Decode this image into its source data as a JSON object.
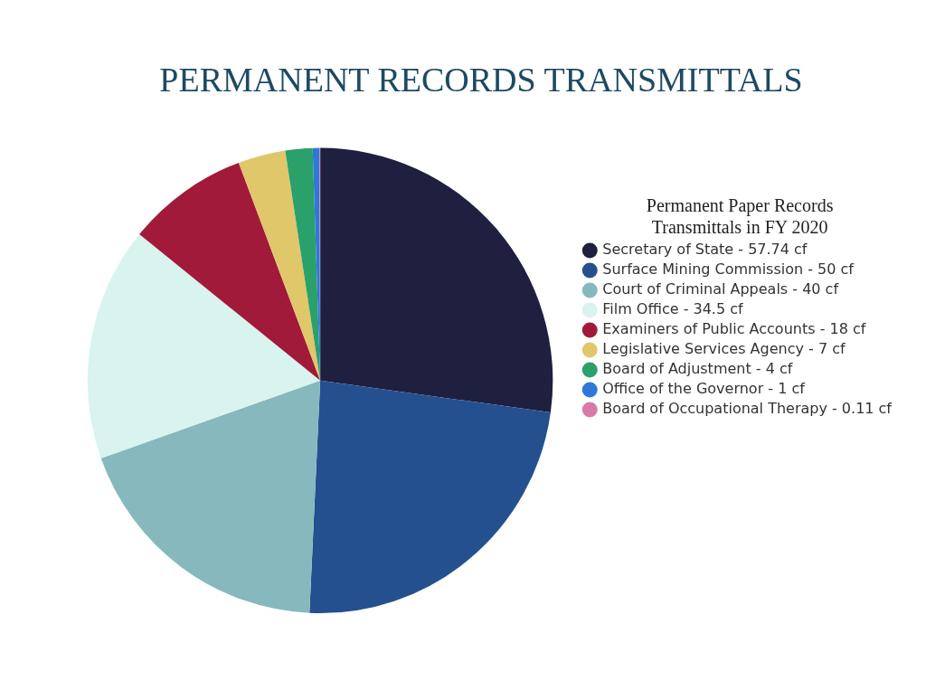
{
  "chart_data": {
    "type": "pie",
    "title": "PERMANENT RECORDS TRANSMITTALS",
    "legend_title": "Permanent Paper Records Transmittals in FY 2020",
    "legend": "right",
    "categories": [
      "Secretary of State",
      "Surface Mining Commission",
      "Court of Criminal Appeals",
      "Film Office",
      "Examiners of Public Accounts",
      "Legislative Services Agency",
      "Board of Adjustment",
      "Office of the Governor",
      "Board of Occupational Therapy"
    ],
    "values": [
      57.74,
      50,
      40,
      34.5,
      18,
      7,
      4,
      1,
      0.11
    ],
    "value_labels": [
      "57.74 cf",
      "50 cf",
      "40 cf",
      "34.5 cf",
      "18 cf",
      "7 cf",
      "4 cf",
      "1 cf",
      "0.11 cf"
    ],
    "colors": [
      "#1f1f3f",
      "#24508f",
      "#86b8be",
      "#d9f3ef",
      "#a11a3a",
      "#e0c76a",
      "#2aa06a",
      "#2f78d8",
      "#d87aa8"
    ]
  }
}
